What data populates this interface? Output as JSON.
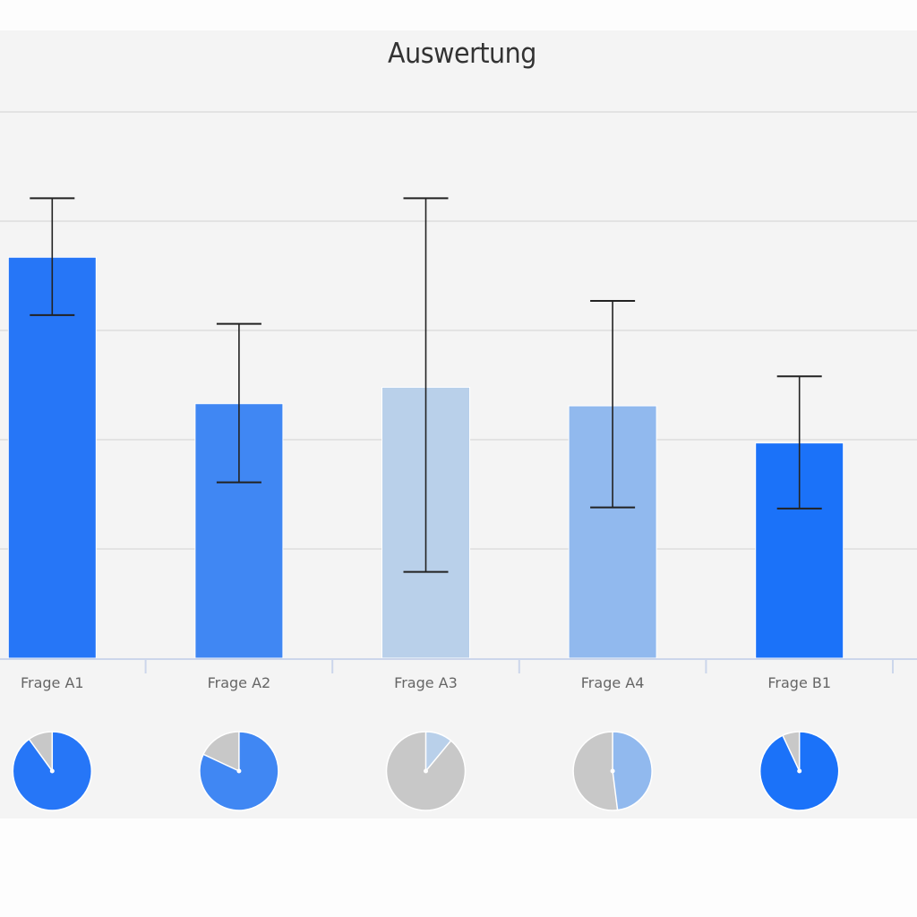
{
  "chart_data": {
    "type": "bar",
    "title": "Auswertung",
    "xlabel": "",
    "ylabel": "",
    "y_tick_labels_visible": false,
    "ylim": [
      0,
      5
    ],
    "grid": true,
    "categories": [
      "Frage A1",
      "Frage A2",
      "Frage A3",
      "Frage A4",
      "Frage B1"
    ],
    "values": [
      3.67,
      2.33,
      2.48,
      2.31,
      1.97
    ],
    "error_bars": [
      {
        "low": 3.14,
        "high": 4.21
      },
      {
        "low": 1.61,
        "high": 3.06
      },
      {
        "low": 0.79,
        "high": 4.21
      },
      {
        "low": 1.38,
        "high": 3.27
      },
      {
        "low": 1.37,
        "high": 2.58
      }
    ],
    "bar_colors": [
      "#2676f7",
      "#4087f3",
      "#b9d0ea",
      "#91b9ee",
      "#1b72f9"
    ],
    "pies": [
      {
        "category": "Frage A1",
        "colored_fraction": 0.9,
        "color": "#2676f7",
        "rest_color": "#c8c8c8"
      },
      {
        "category": "Frage A2",
        "colored_fraction": 0.82,
        "color": "#4087f3",
        "rest_color": "#c8c8c8"
      },
      {
        "category": "Frage A3",
        "colored_fraction": 0.11,
        "color": "#b9d0ea",
        "rest_color": "#c8c8c8"
      },
      {
        "category": "Frage A4",
        "colored_fraction": 0.48,
        "color": "#91b9ee",
        "rest_color": "#c8c8c8"
      },
      {
        "category": "Frage B1",
        "colored_fraction": 0.93,
        "color": "#1b72f9",
        "rest_color": "#c8c8c8"
      }
    ],
    "legend": null
  }
}
